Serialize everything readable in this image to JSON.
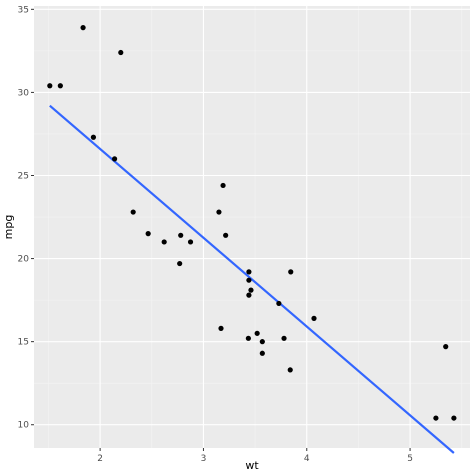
{
  "chart_data": {
    "type": "scatter",
    "title": "",
    "xlabel": "wt",
    "ylabel": "mpg",
    "xlim": [
      1.36,
      5.58
    ],
    "ylim": [
      8.6,
      35.2
    ],
    "x_ticks": [
      2,
      3,
      4,
      5
    ],
    "x_tick_labels": [
      "2",
      "3",
      "4",
      "5"
    ],
    "y_ticks": [
      10,
      15,
      20,
      25,
      30,
      35
    ],
    "y_tick_labels": [
      "10",
      "15",
      "20",
      "25",
      "30",
      "35"
    ],
    "grid": true,
    "legend": "none",
    "colors": {
      "panel": "#ebebeb",
      "grid_major": "#ffffff",
      "grid_minor": "#f4f4f4",
      "points": "#000000",
      "fit_line": "#3366ff",
      "tick": "#333333"
    },
    "series": [
      {
        "kind": "points",
        "x": [
          2.62,
          2.875,
          2.32,
          3.215,
          3.44,
          3.46,
          3.57,
          3.19,
          3.15,
          3.44,
          3.44,
          4.07,
          3.73,
          3.78,
          5.25,
          5.424,
          5.345,
          2.2,
          1.615,
          1.835,
          2.465,
          3.52,
          3.435,
          3.84,
          3.845,
          1.935,
          2.14,
          1.513,
          3.17,
          2.77,
          3.57,
          2.78
        ],
        "y": [
          21.0,
          21.0,
          22.8,
          21.4,
          18.7,
          18.1,
          14.3,
          24.4,
          22.8,
          19.2,
          17.8,
          16.4,
          17.3,
          15.2,
          10.4,
          10.4,
          14.7,
          32.4,
          30.4,
          33.9,
          21.5,
          15.5,
          15.2,
          13.3,
          19.2,
          27.3,
          26.0,
          30.4,
          15.8,
          19.7,
          15.0,
          21.4
        ]
      },
      {
        "kind": "line",
        "x": [
          1.513,
          5.424
        ],
        "y": [
          29.2,
          8.3
        ]
      }
    ]
  }
}
